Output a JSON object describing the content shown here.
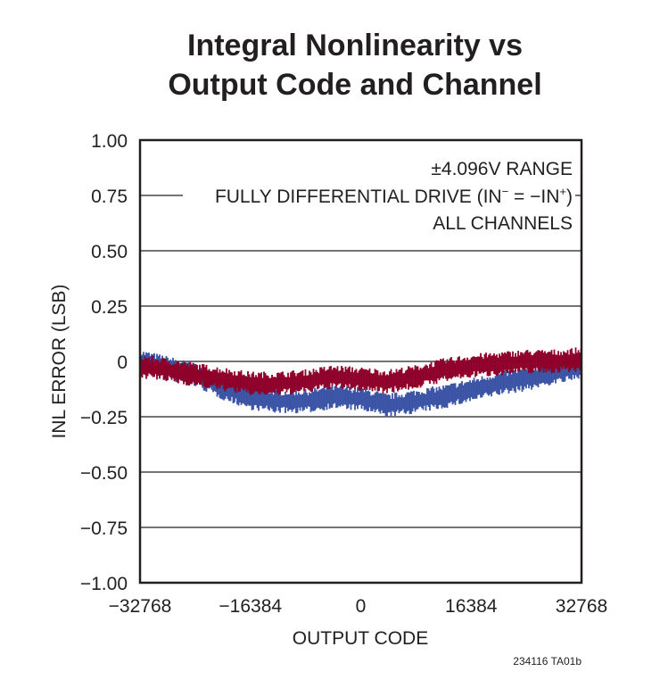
{
  "chart_data": {
    "type": "line",
    "title_lines": [
      "Integral Nonlinearity vs",
      "Output Code and Channel"
    ],
    "xlabel": "OUTPUT CODE",
    "ylabel": "INL ERROR (LSB)",
    "xlim": [
      -32768,
      32768
    ],
    "ylim": [
      -1.0,
      1.0
    ],
    "x_ticks": [
      -32768,
      -16384,
      0,
      16384,
      32768
    ],
    "x_tick_labels": [
      "−32768",
      "−16384",
      "0",
      "16384",
      "32768"
    ],
    "y_ticks": [
      1.0,
      0.75,
      0.5,
      0.25,
      0,
      -0.25,
      -0.5,
      -0.75,
      -1.0
    ],
    "y_tick_labels": [
      "1.00",
      "0.75",
      "0.50",
      "0.25",
      "0",
      "−0.25",
      "−0.50",
      "−0.75",
      "−1.00"
    ],
    "grid": "horizontal",
    "annotation": {
      "line1": "±4.096V RANGE",
      "line2_main": "FULLY DIFFERENTIAL DRIVE (IN",
      "line2_sup1": "−",
      "line2_mid": " = −IN",
      "line2_sup2": "+",
      "line2_end": ")",
      "line3": "ALL CHANNELS"
    },
    "x": [
      -32768,
      -28672,
      -24576,
      -20480,
      -16384,
      -12288,
      -8192,
      -4096,
      0,
      4096,
      8192,
      12288,
      16384,
      20480,
      24576,
      28672,
      32768
    ],
    "series": [
      {
        "color": "#3a53a4",
        "band_width": 0.08,
        "values": [
          0.0,
          -0.03,
          -0.06,
          -0.12,
          -0.165,
          -0.18,
          -0.18,
          -0.16,
          -0.17,
          -0.2,
          -0.18,
          -0.16,
          -0.13,
          -0.1,
          -0.08,
          -0.05,
          -0.03
        ]
      },
      {
        "color": "#8e0029",
        "band_width": 0.08,
        "values": [
          -0.02,
          -0.04,
          -0.06,
          -0.08,
          -0.1,
          -0.1,
          -0.09,
          -0.07,
          -0.08,
          -0.09,
          -0.07,
          -0.04,
          -0.02,
          -0.01,
          0.0,
          0.0,
          0.01
        ]
      }
    ],
    "footnote": "234116 TA01b"
  }
}
